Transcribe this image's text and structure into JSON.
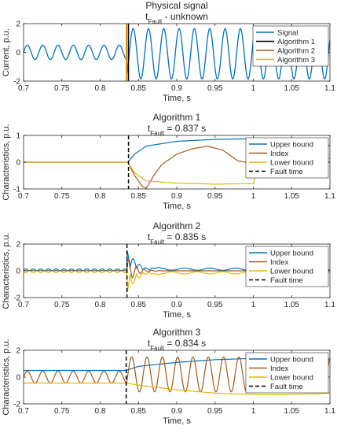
{
  "colors": {
    "blue": "#0072BD",
    "orange": "#D95319",
    "brown": "#A2591C",
    "yellow": "#E3B800",
    "black": "#000000",
    "axis": "#262626"
  },
  "chart_data": [
    {
      "type": "line",
      "title": "Physical signal",
      "subtitle_main": "t",
      "subtitle_sub": "Fault",
      "subtitle_rest": " - unknown",
      "xlabel": "Time, s",
      "ylabel": "Current, p.u.",
      "xlim": [
        0.7,
        1.1
      ],
      "ylim": [
        -2,
        2
      ],
      "xticks": [
        "0.7",
        "0.75",
        "0.8",
        "0.85",
        "0.9",
        "0.95",
        "1",
        "1.05",
        "1.1"
      ],
      "yticks": [
        "-2",
        "0",
        "2"
      ],
      "legend": [
        "Signal",
        "Algorithm 1",
        "Algorithm 2",
        "Algorithm 3"
      ],
      "legend_position": "top-right",
      "fault_markers": [
        0.837,
        0.835,
        0.834
      ],
      "signal": {
        "freq_hz": 50,
        "pre_fault_amplitude": 0.5,
        "post_fault_amplitude": 1.75,
        "post_fault_offset": -0.1,
        "fault_time": 0.835
      }
    },
    {
      "type": "line",
      "title": "Algorithm 1",
      "subtitle_main": "t",
      "subtitle_sub": "Fault",
      "subtitle_rest": " = 0.837 s",
      "xlabel": "Time, s",
      "ylabel": "Characteristics, p.u.",
      "xlim": [
        0.7,
        1.1
      ],
      "ylim": [
        -1,
        1
      ],
      "xticks": [
        "0.7",
        "0.75",
        "0.8",
        "0.85",
        "0.9",
        "0.95",
        "1",
        "1.05",
        "1.1"
      ],
      "yticks": [
        "-1",
        "0",
        "1"
      ],
      "legend": [
        "Upper bound",
        "Index",
        "Lower bound",
        "Fault time"
      ],
      "legend_position": "top-right",
      "fault_time": 0.837,
      "upper_bound": {
        "x": [
          0.7,
          0.836,
          0.845,
          0.86,
          0.9,
          0.95,
          1.0,
          1.05,
          1.1
        ],
        "y": [
          0,
          0,
          0.3,
          0.6,
          0.78,
          0.85,
          0.88,
          0.74,
          0.62
        ]
      },
      "index": {
        "x": [
          0.7,
          0.836,
          0.845,
          0.855,
          0.86,
          0.87,
          0.88,
          0.9,
          0.92,
          0.94,
          0.96,
          0.98,
          0.99,
          1.1
        ],
        "y": [
          0,
          0,
          -0.5,
          -0.9,
          -0.98,
          -0.5,
          -0.1,
          0.3,
          0.5,
          0.6,
          0.45,
          0.05,
          0,
          0
        ]
      },
      "lower_bound": {
        "x": [
          0.7,
          0.836,
          0.845,
          0.86,
          0.9,
          0.95,
          1.0,
          1.01,
          1.05,
          1.1
        ],
        "y": [
          0,
          0,
          -0.4,
          -0.7,
          -0.78,
          -0.82,
          -0.8,
          0.08,
          0.12,
          0.14
        ]
      }
    },
    {
      "type": "line",
      "title": "Algorithm 2",
      "subtitle_main": "t",
      "subtitle_sub": "Fault",
      "subtitle_rest": " = 0.835 s",
      "xlabel": "Time, s",
      "ylabel": "Characteristics, p.u.",
      "xlim": [
        0.7,
        1.1
      ],
      "ylim": [
        -2,
        2
      ],
      "xticks": [
        "0.7",
        "0.75",
        "0.8",
        "0.85",
        "0.9",
        "0.95",
        "1",
        "1.05",
        "1.1"
      ],
      "yticks": [
        "-2",
        "0",
        "2"
      ],
      "legend": [
        "Upper bound",
        "Index",
        "Lower bound",
        "Fault time"
      ],
      "legend_position": "top-right",
      "fault_time": 0.835,
      "upper_bound": {
        "pre_fault_level": 0.08,
        "peak": 1.5,
        "peak_time": 0.85,
        "decay_tau": 0.012,
        "settled": 0.12
      },
      "index": {
        "peak": 1.1,
        "decay_tau": 0.01,
        "freq_hz": 100
      },
      "lower_bound": {
        "pre_fault_level": -0.08,
        "peak": -1.6,
        "peak_time": 0.845,
        "decay_tau": 0.012,
        "settled": -0.15
      }
    },
    {
      "type": "line",
      "title": "Algorithm 3",
      "subtitle_main": "t",
      "subtitle_sub": "Fault",
      "subtitle_rest": " = 0.834 s",
      "xlabel": "Time, s",
      "ylabel": "Characteristics, p.u.",
      "xlim": [
        0.7,
        1.1
      ],
      "ylim": [
        -2,
        2
      ],
      "xticks": [
        "0.7",
        "0.75",
        "0.8",
        "0.85",
        "0.9",
        "0.95",
        "1",
        "1.05",
        "1.1"
      ],
      "yticks": [
        "-2",
        "0",
        "2"
      ],
      "legend": [
        "Upper bound",
        "Index",
        "Lower bound",
        "Fault time"
      ],
      "legend_position": "top-right",
      "fault_time": 0.834,
      "upper_bound": {
        "x": [
          0.7,
          0.834,
          0.85,
          0.9,
          0.95,
          1.0,
          1.05,
          1.1
        ],
        "y": [
          0.5,
          0.5,
          0.8,
          1.1,
          1.3,
          1.4,
          1.38,
          1.35
        ]
      },
      "index": {
        "freq_hz": 50,
        "pre_fault_amplitude": 0.45,
        "pre_fault_offset": 0.0,
        "post_fault_amplitude": 1.3,
        "post_fault_offset": 0.2
      },
      "lower_bound": {
        "x": [
          0.7,
          0.834,
          0.85,
          0.9,
          0.95,
          1.0,
          1.05,
          1.1
        ],
        "y": [
          -0.45,
          -0.45,
          -0.6,
          -0.95,
          -1.2,
          -1.3,
          -1.3,
          -1.2
        ]
      }
    }
  ]
}
